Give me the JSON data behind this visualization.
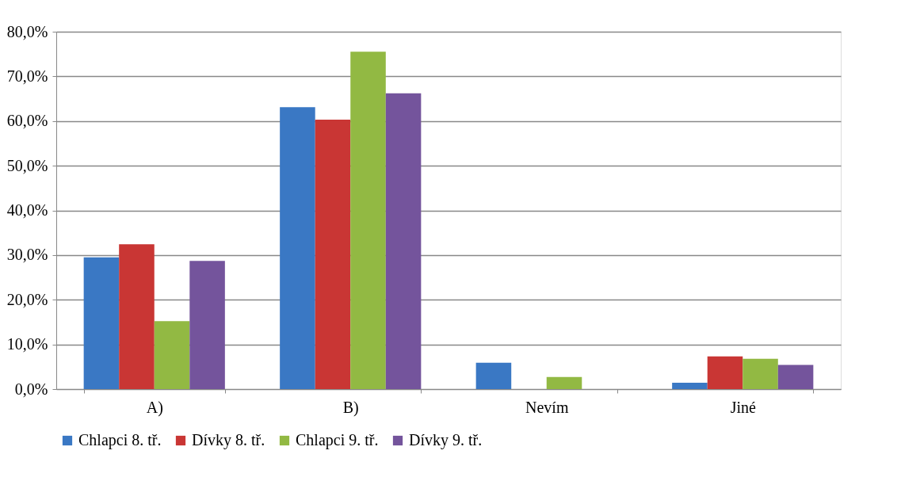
{
  "chart_data": {
    "type": "bar",
    "categories": [
      "A)",
      "B)",
      "Nevím",
      "Jiné"
    ],
    "series": [
      {
        "name": "Chlapci 8. tř.",
        "color": "#3a78c4",
        "values": [
          29.5,
          63.1,
          5.9,
          1.4
        ]
      },
      {
        "name": "Dívky 8. tř.",
        "color": "#c93634",
        "values": [
          32.4,
          60.3,
          0,
          7.3
        ]
      },
      {
        "name": "Chlapci 9. tř.",
        "color": "#92b943",
        "values": [
          15.2,
          75.5,
          2.7,
          6.8
        ]
      },
      {
        "name": "Dívky 9. tř.",
        "color": "#74549c",
        "values": [
          28.7,
          66.2,
          0,
          5.4
        ]
      }
    ],
    "ylim": [
      0,
      80
    ],
    "yticks": [
      {
        "value": 0,
        "label": "0,0%"
      },
      {
        "value": 10,
        "label": "10,0%"
      },
      {
        "value": 20,
        "label": "20,0%"
      },
      {
        "value": 30,
        "label": "30,0%"
      },
      {
        "value": 40,
        "label": "40,0%"
      },
      {
        "value": 50,
        "label": "50,0%"
      },
      {
        "value": 60,
        "label": "60,0%"
      },
      {
        "value": 70,
        "label": "70,0%"
      },
      {
        "value": 80,
        "label": "80,0%"
      }
    ],
    "grid": "y",
    "legend": "bottom"
  }
}
